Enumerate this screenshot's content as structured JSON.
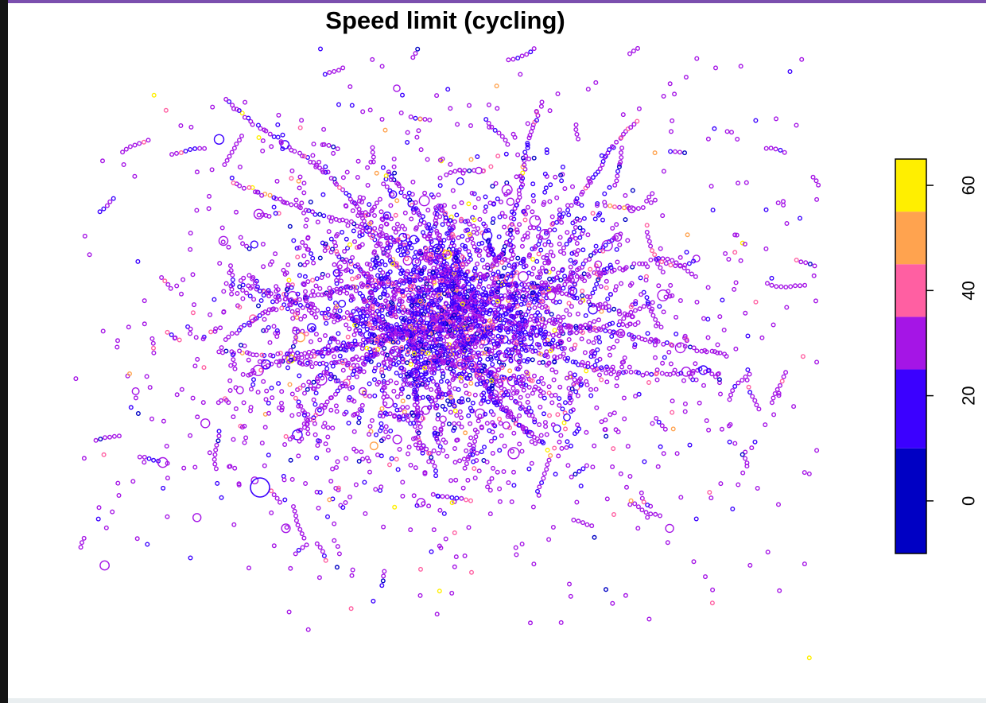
{
  "title": "Speed limit (cycling)",
  "legend": {
    "bins": [
      {
        "from": -10,
        "to": 10,
        "color": "#0000c4"
      },
      {
        "from": 10,
        "to": 25,
        "color": "#3b00ff"
      },
      {
        "from": 25,
        "to": 35,
        "color": "#a515e6"
      },
      {
        "from": 35,
        "to": 45,
        "color": "#ff5fa2"
      },
      {
        "from": 45,
        "to": 55,
        "color": "#ffa34f"
      },
      {
        "from": 55,
        "to": 65,
        "color": "#ffef00"
      }
    ],
    "ticks": [
      {
        "value": 0,
        "label": "0"
      },
      {
        "value": 20,
        "label": "20"
      },
      {
        "value": 40,
        "label": "40"
      },
      {
        "value": 60,
        "label": "60"
      }
    ],
    "placement": "right"
  },
  "colors": {
    "frame_accent": "#7b4fae",
    "frame_left": "#141414",
    "background": "#ffffff"
  },
  "chart_data": {
    "type": "scatter",
    "title": "Speed limit (cycling)",
    "xlabel": "",
    "ylabel": "",
    "axes_shown": false,
    "grid": false,
    "legend_placement": "right",
    "color_scale": {
      "value_range": [
        -10,
        65
      ],
      "ticks": [
        0,
        20,
        40,
        60
      ],
      "colors": [
        "#0000c4",
        "#3b00ff",
        "#a515e6",
        "#ff5fa2",
        "#ffa34f",
        "#ffef00"
      ]
    },
    "points_summary": {
      "distribution": "dense cluster of points centered in the map, thinning outward",
      "dominant_values": [
        20,
        30
      ],
      "rare_values": [
        40,
        50,
        60
      ]
    }
  }
}
